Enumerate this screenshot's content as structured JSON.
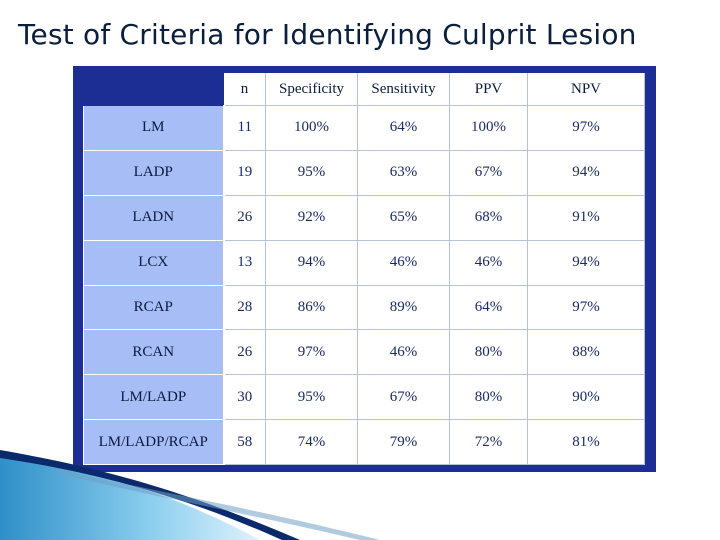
{
  "slide": {
    "title": "Test of Criteria for Identifying Culprit Lesion"
  },
  "table": {
    "columns": [
      "n",
      "Specificity",
      "Sensitivity",
      "PPV",
      "NPV"
    ],
    "rows": [
      {
        "label": "LM",
        "cells": [
          "11",
          "100%",
          "64%",
          "100%",
          "97%"
        ]
      },
      {
        "label": "LADP",
        "cells": [
          "19",
          "95%",
          "63%",
          "67%",
          "94%"
        ]
      },
      {
        "label": "LADN",
        "cells": [
          "26",
          "92%",
          "65%",
          "68%",
          "91%"
        ]
      },
      {
        "label": "LCX",
        "cells": [
          "13",
          "94%",
          "46%",
          "46%",
          "94%"
        ]
      },
      {
        "label": "RCAP",
        "cells": [
          "28",
          "86%",
          "89%",
          "64%",
          "97%"
        ]
      },
      {
        "label": "RCAN",
        "cells": [
          "26",
          "97%",
          "46%",
          "80%",
          "88%"
        ]
      },
      {
        "label": "LM/LADP",
        "cells": [
          "30",
          "95%",
          "67%",
          "80%",
          "90%"
        ]
      },
      {
        "label": "LM/LADP/RCAP",
        "cells": [
          "58",
          "74%",
          "79%",
          "72%",
          "81%"
        ]
      }
    ]
  },
  "colors": {
    "frame": "#1c2e93",
    "row_header": "#a6bdf5",
    "title_text": "#0a1f3d",
    "swoosh_dark": "#0b2a6b",
    "swoosh_light": "#3aa3d8"
  }
}
